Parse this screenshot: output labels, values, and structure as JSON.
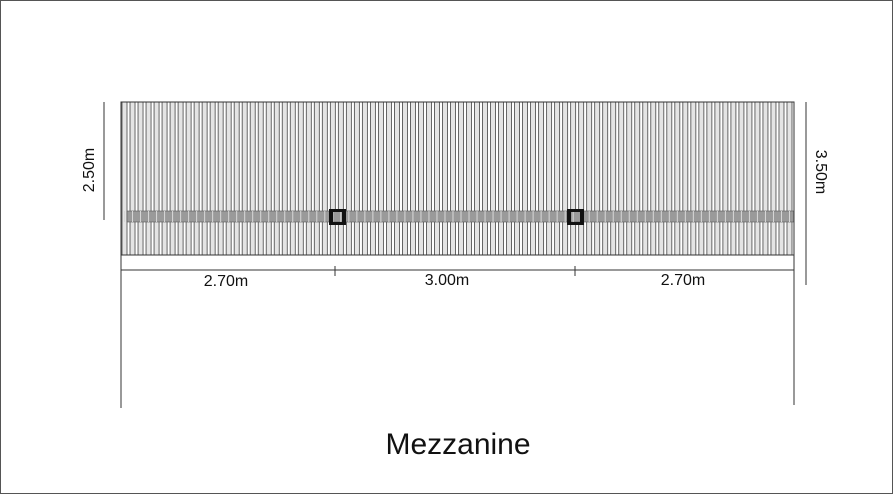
{
  "title": "Mezzanine",
  "dimensions": {
    "segments": [
      "2.70m",
      "3.00m",
      "2.70m"
    ],
    "left_height": "2.50m",
    "right_height": "3.50m"
  }
}
